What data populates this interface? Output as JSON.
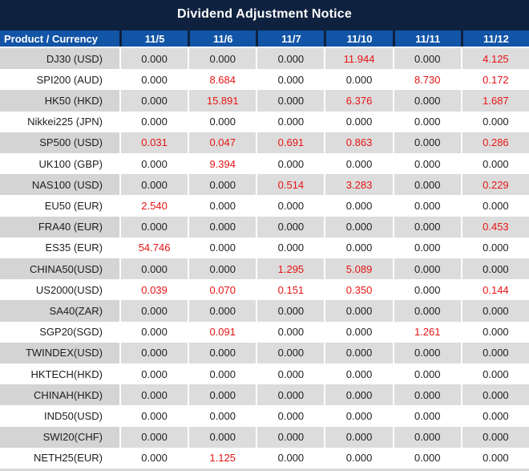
{
  "title": "Dividend Adjustment Notice",
  "colors": {
    "title_bar_bg": "#0e213f",
    "header_bg": "#1254a6",
    "red_value": "#e81414",
    "stripe_gray": "#dcdcdc",
    "stripe_gray_product": "#d4d4d4",
    "text": "#1e1e1e"
  },
  "table": {
    "columns": [
      "Product / Currency",
      "11/5",
      "11/6",
      "11/7",
      "11/10",
      "11/11",
      "11/12"
    ],
    "rows": [
      {
        "product": "DJ30 (USD)",
        "values": [
          "0.000",
          "0.000",
          "0.000",
          "11.944",
          "0.000",
          "4.125"
        ],
        "red_indices": [
          3,
          5
        ]
      },
      {
        "product": "SPI200 (AUD)",
        "values": [
          "0.000",
          "8.684",
          "0.000",
          "0.000",
          "8.730",
          "0.172"
        ],
        "red_indices": [
          1,
          4,
          5
        ]
      },
      {
        "product": "HK50 (HKD)",
        "values": [
          "0.000",
          "15.891",
          "0.000",
          "6.376",
          "0.000",
          "1.687"
        ],
        "red_indices": [
          1,
          3,
          5
        ]
      },
      {
        "product": "Nikkei225 (JPN)",
        "values": [
          "0.000",
          "0.000",
          "0.000",
          "0.000",
          "0.000",
          "0.000"
        ],
        "red_indices": []
      },
      {
        "product": "SP500 (USD)",
        "values": [
          "0.031",
          "0.047",
          "0.691",
          "0.863",
          "0.000",
          "0.286"
        ],
        "red_indices": [
          0,
          1,
          2,
          3,
          5
        ]
      },
      {
        "product": "UK100 (GBP)",
        "values": [
          "0.000",
          "9.394",
          "0.000",
          "0.000",
          "0.000",
          "0.000"
        ],
        "red_indices": [
          1
        ]
      },
      {
        "product": "NAS100 (USD)",
        "values": [
          "0.000",
          "0.000",
          "0.514",
          "3.283",
          "0.000",
          "0.229"
        ],
        "red_indices": [
          2,
          3,
          5
        ]
      },
      {
        "product": "EU50 (EUR)",
        "values": [
          "2.540",
          "0.000",
          "0.000",
          "0.000",
          "0.000",
          "0.000"
        ],
        "red_indices": [
          0
        ]
      },
      {
        "product": "FRA40 (EUR)",
        "values": [
          "0.000",
          "0.000",
          "0.000",
          "0.000",
          "0.000",
          "0.453"
        ],
        "red_indices": [
          5
        ]
      },
      {
        "product": "ES35 (EUR)",
        "values": [
          "54.746",
          "0.000",
          "0.000",
          "0.000",
          "0.000",
          "0.000"
        ],
        "red_indices": [
          0
        ]
      },
      {
        "product": "CHINA50(USD)",
        "values": [
          "0.000",
          "0.000",
          "1.295",
          "5.089",
          "0.000",
          "0.000"
        ],
        "red_indices": [
          2,
          3
        ]
      },
      {
        "product": "US2000(USD)",
        "values": [
          "0.039",
          "0.070",
          "0.151",
          "0.350",
          "0.000",
          "0.144"
        ],
        "red_indices": [
          0,
          1,
          2,
          3,
          5
        ]
      },
      {
        "product": "SA40(ZAR)",
        "values": [
          "0.000",
          "0.000",
          "0.000",
          "0.000",
          "0.000",
          "0.000"
        ],
        "red_indices": []
      },
      {
        "product": "SGP20(SGD)",
        "values": [
          "0.000",
          "0.091",
          "0.000",
          "0.000",
          "1.261",
          "0.000"
        ],
        "red_indices": [
          1,
          4
        ]
      },
      {
        "product": "TWINDEX(USD)",
        "values": [
          "0.000",
          "0.000",
          "0.000",
          "0.000",
          "0.000",
          "0.000"
        ],
        "red_indices": []
      },
      {
        "product": "HKTECH(HKD)",
        "values": [
          "0.000",
          "0.000",
          "0.000",
          "0.000",
          "0.000",
          "0.000"
        ],
        "red_indices": []
      },
      {
        "product": "CHINAH(HKD)",
        "values": [
          "0.000",
          "0.000",
          "0.000",
          "0.000",
          "0.000",
          "0.000"
        ],
        "red_indices": []
      },
      {
        "product": "IND50(USD)",
        "values": [
          "0.000",
          "0.000",
          "0.000",
          "0.000",
          "0.000",
          "0.000"
        ],
        "red_indices": []
      },
      {
        "product": "SWI20(CHF)",
        "values": [
          "0.000",
          "0.000",
          "0.000",
          "0.000",
          "0.000",
          "0.000"
        ],
        "red_indices": []
      },
      {
        "product": "NETH25(EUR)",
        "values": [
          "0.000",
          "1.125",
          "0.000",
          "0.000",
          "0.000",
          "0.000"
        ],
        "red_indices": [
          1
        ]
      }
    ]
  }
}
